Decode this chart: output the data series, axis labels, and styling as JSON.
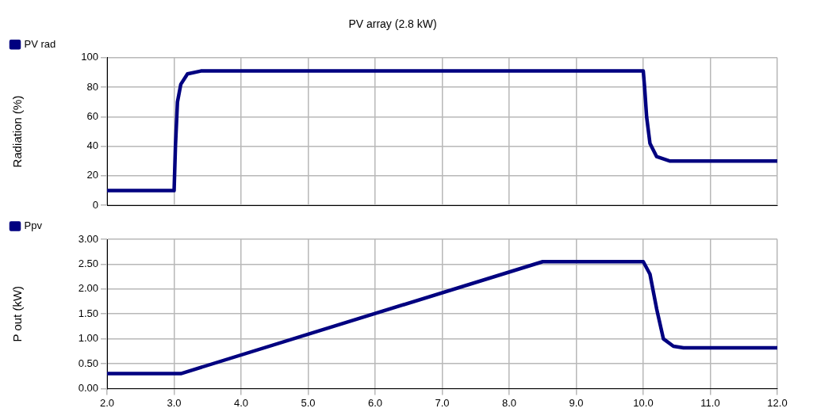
{
  "chart_data": [
    {
      "type": "line",
      "title": "PV array (2.8 kW)",
      "ylabel": "Radiation (%)",
      "legend": "top left",
      "grid": true,
      "marker": "none",
      "line_style": "solid",
      "tick_labels": "y",
      "xlim": [
        2,
        12
      ],
      "xticks": [
        {
          "value": 2,
          "label": null
        },
        {
          "value": 3,
          "label": null
        },
        {
          "value": 4,
          "label": null
        },
        {
          "value": 5,
          "label": null
        },
        {
          "value": 6,
          "label": null
        },
        {
          "value": 7,
          "label": null
        },
        {
          "value": 8,
          "label": null
        },
        {
          "value": 9,
          "label": null
        },
        {
          "value": 10,
          "label": null
        },
        {
          "value": 11,
          "label": null
        },
        {
          "value": 12,
          "label": null
        }
      ],
      "ylim": [
        0,
        100
      ],
      "yticks": [
        0,
        20,
        40,
        60,
        80,
        100
      ],
      "series": [
        {
          "name": "PV rad",
          "color": "#000080",
          "x": [
            2,
            3,
            3.02,
            3.05,
            3.1,
            3.2,
            3.4,
            10,
            10.02,
            10.05,
            10.1,
            10.2,
            10.4,
            12
          ],
          "values": [
            10,
            10,
            40,
            70,
            82,
            89,
            91,
            91,
            80,
            60,
            42,
            33,
            30,
            30
          ]
        }
      ]
    },
    {
      "type": "line",
      "ylabel": "P out (kW)",
      "legend": "top left",
      "grid": true,
      "marker": "none",
      "line_style": "solid",
      "xlim": [
        2,
        12
      ],
      "xticks": [
        {
          "value": 2,
          "label": "2.0"
        },
        {
          "value": 3,
          "label": "3.0"
        },
        {
          "value": 4,
          "label": "4.0"
        },
        {
          "value": 5,
          "label": "5.0"
        },
        {
          "value": 6,
          "label": "6.0"
        },
        {
          "value": 7,
          "label": "7.0"
        },
        {
          "value": 8,
          "label": "8.0"
        },
        {
          "value": 9,
          "label": "9.0"
        },
        {
          "value": 10,
          "label": "10.0"
        },
        {
          "value": 11,
          "label": "11.0"
        },
        {
          "value": 12,
          "label": "12.0"
        }
      ],
      "ylim": [
        0,
        3
      ],
      "yticks": [
        {
          "value": 0,
          "label": "0.00"
        },
        {
          "value": 0.5,
          "label": "0.50"
        },
        {
          "value": 1,
          "label": "1.00"
        },
        {
          "value": 1.5,
          "label": "1.50"
        },
        {
          "value": 2,
          "label": "2.00"
        },
        {
          "value": 2.5,
          "label": "2.50"
        },
        {
          "value": 3,
          "label": "3.00"
        }
      ],
      "series": [
        {
          "name": "Ppv",
          "color": "#000080",
          "x": [
            2,
            3.1,
            8.5,
            10,
            10.1,
            10.2,
            10.3,
            10.45,
            10.6,
            12
          ],
          "values": [
            0.3,
            0.3,
            2.55,
            2.55,
            2.3,
            1.6,
            1.0,
            0.85,
            0.82,
            0.82
          ]
        }
      ]
    }
  ]
}
